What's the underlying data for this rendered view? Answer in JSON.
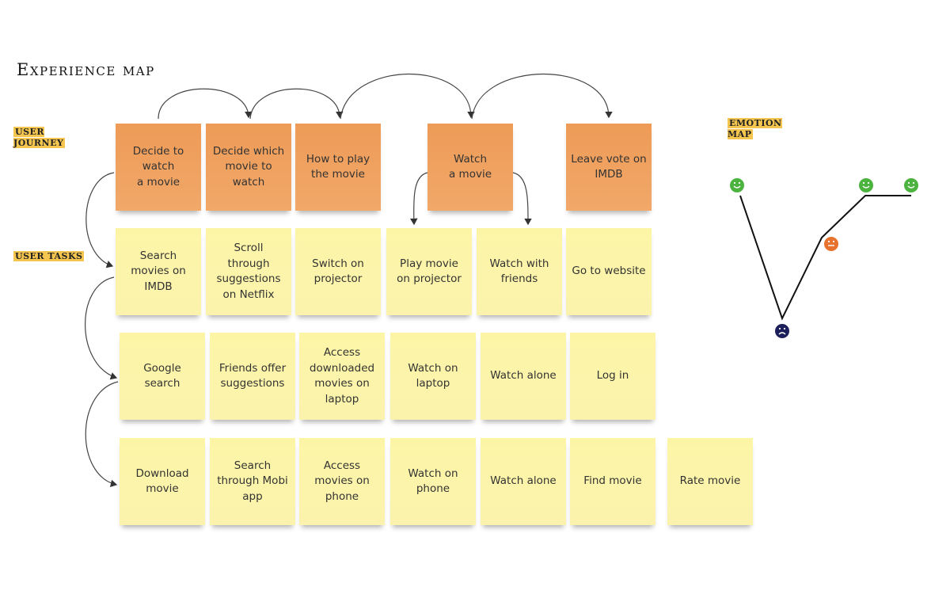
{
  "title": "Experience map",
  "labels": {
    "journey": "User journey",
    "tasks": "User tasks",
    "emotion": "Emotion map"
  },
  "journey": [
    "Decide to\nwatch\na movie",
    "Decide which\nmovie to\nwatch",
    "How to play\nthe movie",
    "Watch\na movie",
    "Leave vote on\nIMDB"
  ],
  "tasks_row1": [
    "Search\nmovies on\nIMDB",
    "Scroll\nthrough\nsuggestions\non Netflix",
    "Switch on\nprojector",
    "Play movie\non projector",
    "Watch with\nfriends",
    "Go to website"
  ],
  "tasks_row2": [
    "Google\nsearch",
    "Friends offer\nsuggestions",
    "Access\ndownloaded\nmovies on\nlaptop",
    "Watch on\nlaptop",
    "Watch alone",
    "Log in"
  ],
  "tasks_row3": [
    "Download\nmovie",
    "Search\nthrough Mobi\napp",
    "Access\nmovies on\nphone",
    "Watch on\nphone",
    "Watch alone",
    "Find movie",
    "Rate movie"
  ],
  "emotions": [
    "happy",
    "sad",
    "neutral",
    "happy",
    "happy"
  ],
  "colors": {
    "journey": "#ef9f5c",
    "task": "#fcf4a9",
    "happy": "#4cb33f",
    "neutral": "#e8732e",
    "sad": "#1c1f5a",
    "label_bg": "#f4c54f"
  }
}
